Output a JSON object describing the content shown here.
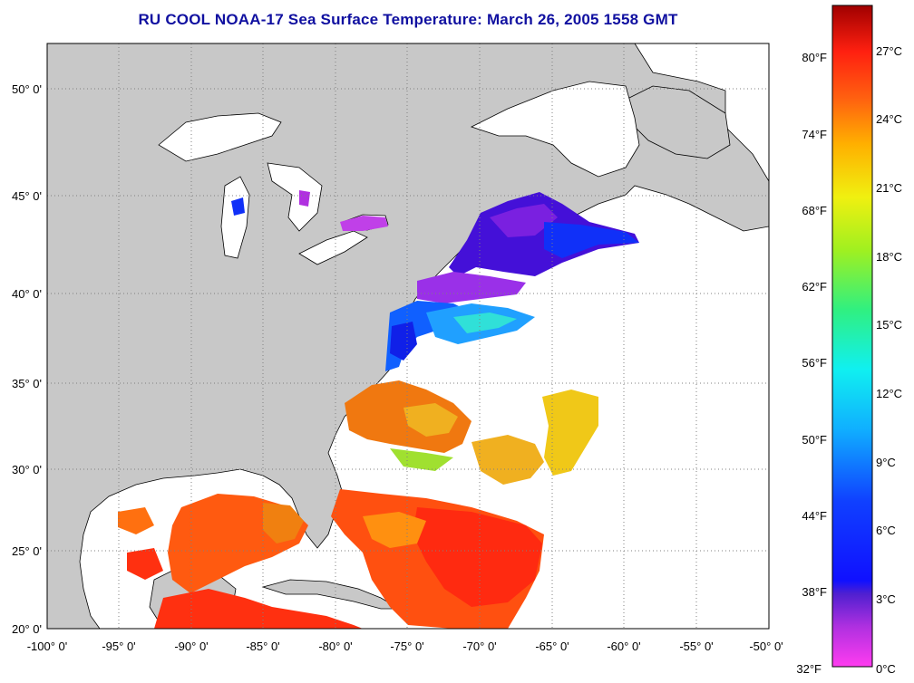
{
  "title": "RU COOL  NOAA-17  Sea Surface Temperature:  March 26, 2005 1558 GMT",
  "lon_ticks": [
    "-100° 0'",
    "-95° 0'",
    "-90° 0'",
    "-85° 0'",
    "-80° 0'",
    "-75° 0'",
    "-70° 0'",
    "-65° 0'",
    "-60° 0'",
    "-55° 0'",
    "-50° 0'"
  ],
  "lat_ticks": [
    "50° 0'",
    "45° 0'",
    "40° 0'",
    "35° 0'",
    "30° 0'",
    "25° 0'",
    "20° 0'"
  ],
  "colorbar": {
    "f_labels": [
      "80°F",
      "74°F",
      "68°F",
      "62°F",
      "56°F",
      "50°F",
      "44°F",
      "38°F",
      "32°F"
    ],
    "c_labels": [
      "27°C",
      "24°C",
      "21°C",
      "18°C",
      "15°C",
      "12°C",
      "9°C",
      "6°C",
      "3°C",
      "0°C"
    ]
  },
  "colors": {
    "land": "#c8c8c8",
    "ocean": "#ffffff",
    "title": "#1010a0"
  }
}
